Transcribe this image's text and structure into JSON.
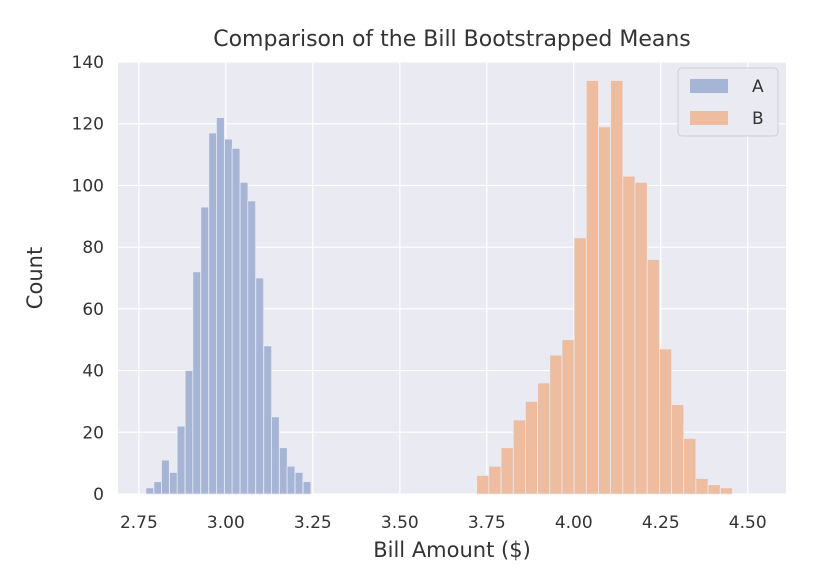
{
  "chart_data": {
    "type": "bar",
    "title": "Comparison of the Bill Bootstrapped Means",
    "xlabel": "Bill Amount ($)",
    "ylabel": "Count",
    "xlim": [
      2.69,
      4.61
    ],
    "ylim": [
      0,
      140
    ],
    "xticks": [
      "2.75",
      "3.00",
      "3.25",
      "3.50",
      "3.75",
      "4.00",
      "4.25",
      "4.50"
    ],
    "yticks": [
      "0",
      "20",
      "40",
      "60",
      "80",
      "100",
      "120",
      "140"
    ],
    "grid": true,
    "legend_position": "top-right",
    "colors": {
      "plot_bg": "#eaeaf2",
      "grid": "#ffffff",
      "A": "#a6b5d6",
      "B": "#eebc9e"
    },
    "series": [
      {
        "name": "A",
        "bin_width": 0.0226,
        "bins": [
          {
            "x": 2.77,
            "count": 2
          },
          {
            "x": 2.793,
            "count": 4
          },
          {
            "x": 2.815,
            "count": 11
          },
          {
            "x": 2.838,
            "count": 7
          },
          {
            "x": 2.86,
            "count": 22
          },
          {
            "x": 2.883,
            "count": 40
          },
          {
            "x": 2.905,
            "count": 72
          },
          {
            "x": 2.928,
            "count": 93
          },
          {
            "x": 2.951,
            "count": 117
          },
          {
            "x": 2.973,
            "count": 122
          },
          {
            "x": 2.996,
            "count": 115
          },
          {
            "x": 3.018,
            "count": 112
          },
          {
            "x": 3.041,
            "count": 101
          },
          {
            "x": 3.063,
            "count": 95
          },
          {
            "x": 3.086,
            "count": 70
          },
          {
            "x": 3.109,
            "count": 48
          },
          {
            "x": 3.131,
            "count": 25
          },
          {
            "x": 3.154,
            "count": 15
          },
          {
            "x": 3.176,
            "count": 9
          },
          {
            "x": 3.199,
            "count": 7
          },
          {
            "x": 3.222,
            "count": 4
          }
        ]
      },
      {
        "name": "B",
        "bin_width": 0.0352,
        "bins": [
          {
            "x": 3.721,
            "count": 6
          },
          {
            "x": 3.756,
            "count": 9
          },
          {
            "x": 3.791,
            "count": 15
          },
          {
            "x": 3.826,
            "count": 24
          },
          {
            "x": 3.861,
            "count": 30
          },
          {
            "x": 3.896,
            "count": 36
          },
          {
            "x": 3.931,
            "count": 45
          },
          {
            "x": 3.966,
            "count": 50
          },
          {
            "x": 4.001,
            "count": 83
          },
          {
            "x": 4.036,
            "count": 134
          },
          {
            "x": 4.071,
            "count": 119
          },
          {
            "x": 4.106,
            "count": 134
          },
          {
            "x": 4.141,
            "count": 103
          },
          {
            "x": 4.176,
            "count": 101
          },
          {
            "x": 4.211,
            "count": 76
          },
          {
            "x": 4.246,
            "count": 47
          },
          {
            "x": 4.281,
            "count": 29
          },
          {
            "x": 4.316,
            "count": 18
          },
          {
            "x": 4.351,
            "count": 5
          },
          {
            "x": 4.386,
            "count": 3
          },
          {
            "x": 4.421,
            "count": 2
          }
        ]
      }
    ]
  }
}
